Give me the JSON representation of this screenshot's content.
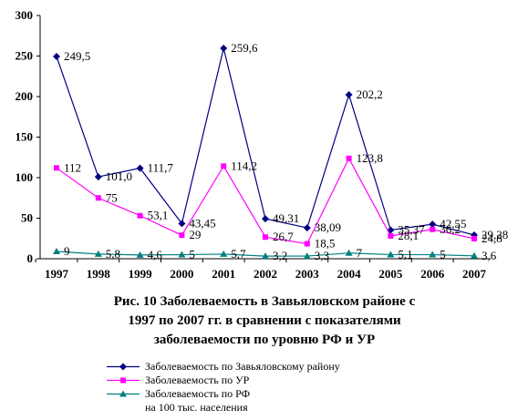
{
  "chart_data": {
    "type": "line",
    "categories": [
      "1997",
      "1998",
      "1999",
      "2000",
      "2001",
      "2002",
      "2003",
      "2004",
      "2005",
      "2006",
      "2007"
    ],
    "ylim": [
      0,
      300
    ],
    "yticks": [
      0,
      50,
      100,
      150,
      200,
      250,
      300
    ],
    "grid": false,
    "legend_position": "bottom",
    "title": "Рис. 10 Заболеваемость в Завьяловском районе с\n1997 по 2007 гг. в сравнении с показателями\nзаболеваемости по уровню РФ и УР",
    "series": [
      {
        "name": "Заболеваемость по Завьяловскому району",
        "color": "#000080",
        "marker": "diamond",
        "values": [
          249.5,
          101.0,
          111.7,
          43.45,
          259.6,
          49.31,
          38.09,
          202.2,
          35.37,
          42.55,
          29.28
        ],
        "labels": [
          "249,5",
          "101,0",
          "111,7",
          "43,45",
          "259,6",
          "49,31",
          "38,09",
          "202,2",
          "35,37",
          "42,55",
          "29,28"
        ]
      },
      {
        "name": "Заболеваемость по УР",
        "color": "#ff00ff",
        "marker": "square",
        "values": [
          112,
          75,
          53.1,
          29,
          114.2,
          26.7,
          18.5,
          123.8,
          28.1,
          36.2,
          24.8
        ],
        "labels": [
          "112",
          "75",
          "53,1",
          "29",
          "114,2",
          "26,7",
          "18,5",
          "123,8",
          "28,1",
          "36,2",
          "24,8"
        ]
      },
      {
        "name": "Заболеваемость по РФ\nна 100 тыс. населения",
        "color": "#008080",
        "marker": "triangle",
        "values": [
          9,
          5.8,
          4.6,
          5,
          5.7,
          3.2,
          3.3,
          7,
          5.1,
          5,
          3.6
        ],
        "labels": [
          "9",
          "5,8",
          "4,6",
          "5",
          "5,7",
          "3,2",
          "3,3",
          "7",
          "5,1",
          "5",
          "3,6"
        ]
      }
    ]
  }
}
